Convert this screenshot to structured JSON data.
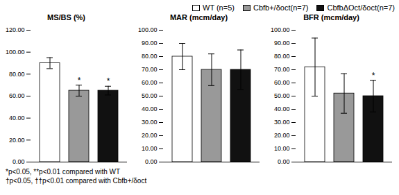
{
  "chart_data": [
    {
      "type": "bar",
      "title": "MS/BS (%)",
      "categories": [
        "WT (n=5)",
        "Cbfb+/δoct(n=7)",
        "CbfbΔOct/δoct(n=7)"
      ],
      "values": [
        90,
        65,
        65
      ],
      "errors": [
        5,
        5,
        4
      ],
      "colors": [
        "white",
        "#999999",
        "#111111"
      ],
      "ylim": [
        0,
        120
      ],
      "yticks": [
        {
          "value": 0,
          "label": "0.00"
        },
        {
          "value": 20,
          "label": "20.00"
        },
        {
          "value": 40,
          "label": "40.00"
        },
        {
          "value": 60,
          "label": "60.00"
        },
        {
          "value": 80,
          "label": "80.00"
        },
        {
          "value": 100,
          "label": "100.00"
        },
        {
          "value": 120,
          "label": "120.00"
        }
      ],
      "tick_labels": "y",
      "grid": false,
      "annotations": [
        {
          "category": "Cbfb+/δoct(n=7)",
          "text": "*"
        },
        {
          "category": "CbfbΔOct/δoct(n=7)",
          "text": "*"
        }
      ]
    },
    {
      "type": "bar",
      "title": "MAR (mcm/day)",
      "categories": [
        "WT (n=5)",
        "Cbfb+/δoct(n=7)",
        "CbfbΔOct/δoct(n=7)"
      ],
      "values": [
        80,
        70,
        70
      ],
      "errors": [
        10,
        12,
        15
      ],
      "colors": [
        "white",
        "#999999",
        "#111111"
      ],
      "ylim": [
        0,
        100
      ],
      "yticks": [
        {
          "value": 0,
          "label": "0.00"
        },
        {
          "value": 10,
          "label": "10.00"
        },
        {
          "value": 20,
          "label": "20.00"
        },
        {
          "value": 30,
          "label": "30.00"
        },
        {
          "value": 40,
          "label": "40.00"
        },
        {
          "value": 50,
          "label": "50.00"
        },
        {
          "value": 60,
          "label": "60.00"
        },
        {
          "value": 70,
          "label": "70.00"
        },
        {
          "value": 80,
          "label": "80.00"
        },
        {
          "value": 90,
          "label": "90.00"
        },
        {
          "value": 100,
          "label": "100.00"
        }
      ],
      "tick_labels": "y",
      "grid": false
    },
    {
      "type": "bar",
      "title": "BFR (mcm/day)",
      "categories": [
        "WT (n=5)",
        "Cbfb+/δoct(n=7)",
        "CbfbΔOct/δoct(n=7)"
      ],
      "values": [
        72,
        52,
        50
      ],
      "errors": [
        22,
        15,
        12
      ],
      "colors": [
        "white",
        "#999999",
        "#111111"
      ],
      "ylim": [
        0,
        100
      ],
      "yticks": [
        {
          "value": 0,
          "label": "0.00"
        },
        {
          "value": 10,
          "label": "10.00"
        },
        {
          "value": 20,
          "label": "20.00"
        },
        {
          "value": 30,
          "label": "30.00"
        },
        {
          "value": 40,
          "label": "40.00"
        },
        {
          "value": 50,
          "label": "50.00"
        },
        {
          "value": 60,
          "label": "60.00"
        },
        {
          "value": 70,
          "label": "70.00"
        },
        {
          "value": 80,
          "label": "80.00"
        },
        {
          "value": 90,
          "label": "90.00"
        },
        {
          "value": 100,
          "label": "100.00"
        }
      ],
      "tick_labels": "y",
      "grid": false,
      "legend": "upper right",
      "annotations": [
        {
          "category": "CbfbΔOct/δoct(n=7)",
          "text": "*"
        },
        {
          "text": "*p<0.05, **p<0.01 compared with WT"
        },
        {
          "text": "†p<0.05, ††p<0.01 compared with Cbfb+/δoct"
        }
      ]
    }
  ]
}
